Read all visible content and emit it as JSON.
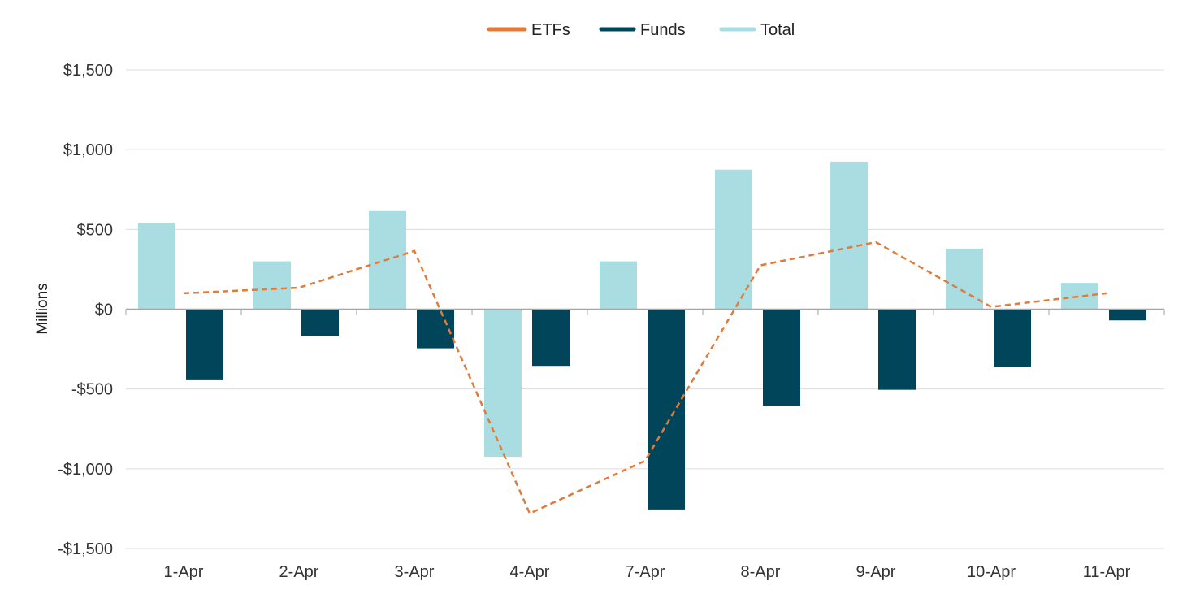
{
  "chart_data": {
    "type": "bar",
    "title": "",
    "xlabel": "",
    "ylabel": "Millions",
    "categories": [
      "1-Apr",
      "2-Apr",
      "3-Apr",
      "4-Apr",
      "7-Apr",
      "8-Apr",
      "9-Apr",
      "10-Apr",
      "11-Apr"
    ],
    "ylim": [
      -1500,
      1500
    ],
    "yticks": [
      1500,
      1000,
      500,
      0,
      -500,
      -1000,
      -1500
    ],
    "ytick_labels": [
      "$1,500",
      "$1,000",
      "$500",
      "$0",
      "-$500",
      "-$1,000",
      "-$1,500"
    ],
    "grid": true,
    "legend_position": "top-center",
    "series": [
      {
        "name": "ETFs",
        "kind": "line",
        "style": "dashed",
        "color": "#E07B39",
        "values": [
          100,
          135,
          365,
          -1280,
          -950,
          275,
          420,
          15,
          100
        ]
      },
      {
        "name": "Funds",
        "kind": "bar",
        "color": "#00455A",
        "values": [
          -440,
          -170,
          -245,
          -355,
          -1255,
          -605,
          -505,
          -360,
          -70
        ]
      },
      {
        "name": "Total",
        "kind": "bar",
        "color": "#A9DDE2",
        "values": [
          540,
          300,
          615,
          -925,
          300,
          875,
          925,
          380,
          165
        ]
      }
    ]
  }
}
